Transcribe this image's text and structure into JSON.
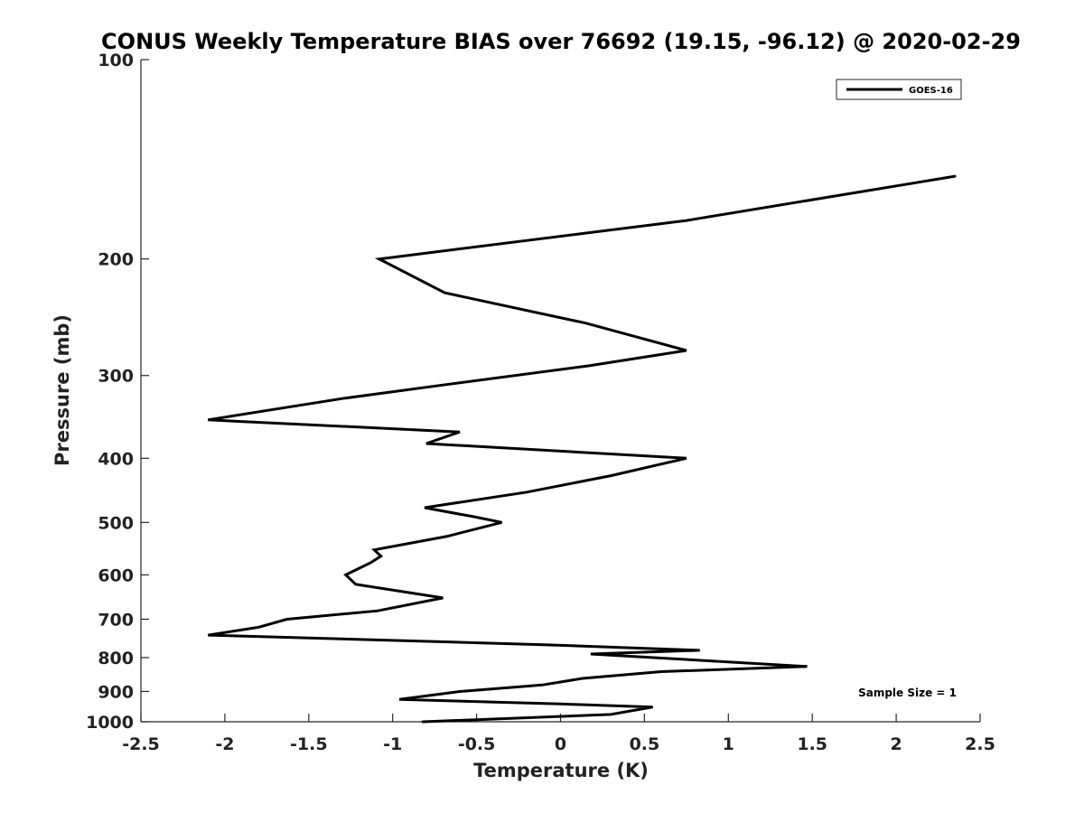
{
  "chart_data": {
    "type": "line",
    "title": "CONUS Weekly Temperature BIAS over 76692 (19.15, -96.12) @ 2020-02-29",
    "xlabel": "Temperature (K)",
    "ylabel": "Pressure (mb)",
    "xlim": [
      -2.5,
      2.5
    ],
    "ylim": [
      100,
      1000
    ],
    "y_scale": "log",
    "y_reversed": true,
    "grid": false,
    "legend_position": "top-right",
    "x_ticks": [
      "-2.5",
      "-2",
      "-1.5",
      "-1",
      "-0.5",
      "0",
      "0.5",
      "1",
      "1.5",
      "2",
      "2.5"
    ],
    "y_ticks": [
      "100",
      "200",
      "300",
      "400",
      "500",
      "600",
      "700",
      "800",
      "900",
      "1000"
    ],
    "annotation": "Sample Size = 1",
    "series": [
      {
        "name": "GOES-16",
        "color": "#000000",
        "points": [
          [
            2.35,
            150
          ],
          [
            0.75,
            175
          ],
          [
            -1.08,
            200
          ],
          [
            -0.69,
            225
          ],
          [
            0.15,
            250
          ],
          [
            0.75,
            275
          ],
          [
            0.17,
            290
          ],
          [
            -0.7,
            310
          ],
          [
            -1.3,
            325
          ],
          [
            -2.1,
            350
          ],
          [
            -0.6,
            365
          ],
          [
            -0.8,
            380
          ],
          [
            0.75,
            400
          ],
          [
            0.3,
            425
          ],
          [
            -0.2,
            450
          ],
          [
            -0.81,
            475
          ],
          [
            -0.52,
            490
          ],
          [
            -0.35,
            500
          ],
          [
            -0.68,
            525
          ],
          [
            -1.11,
            550
          ],
          [
            -1.07,
            562
          ],
          [
            -1.13,
            575
          ],
          [
            -1.28,
            600
          ],
          [
            -1.22,
            620
          ],
          [
            -0.7,
            650
          ],
          [
            -1.09,
            680
          ],
          [
            -1.63,
            700
          ],
          [
            -1.8,
            720
          ],
          [
            -2.1,
            740
          ],
          [
            -0.1,
            765
          ],
          [
            0.83,
            780
          ],
          [
            0.18,
            790
          ],
          [
            1.47,
            825
          ],
          [
            0.6,
            840
          ],
          [
            0.13,
            860
          ],
          [
            -0.11,
            880
          ],
          [
            -0.6,
            900
          ],
          [
            -0.96,
            925
          ],
          [
            0.0,
            940
          ],
          [
            0.55,
            950
          ],
          [
            0.3,
            975
          ],
          [
            -0.82,
            1000
          ]
        ]
      }
    ]
  }
}
